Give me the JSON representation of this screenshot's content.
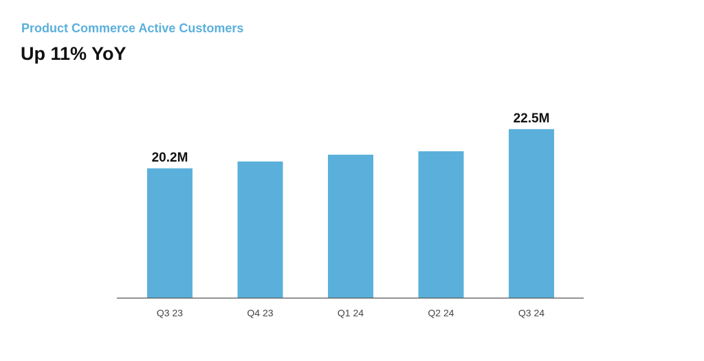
{
  "header": {
    "subtitle": "Product Commerce Active Customers",
    "headline": "Up 11% YoY"
  },
  "colors": {
    "accent": "#5bb0db",
    "bar": "#5bb0db",
    "axis": "#555555",
    "text": "#111111"
  },
  "chart_data": {
    "type": "bar",
    "categories": [
      "Q3 23",
      "Q4 23",
      "Q1 24",
      "Q2 24",
      "Q3 24"
    ],
    "values": [
      20.2,
      20.6,
      21.0,
      21.2,
      22.5
    ],
    "data_labels": [
      "20.2M",
      "",
      "",
      "",
      "22.5M"
    ],
    "ylabel": "",
    "xlabel": "",
    "ylim": [
      12.6,
      23.3
    ],
    "grid": false,
    "legend": "none"
  }
}
